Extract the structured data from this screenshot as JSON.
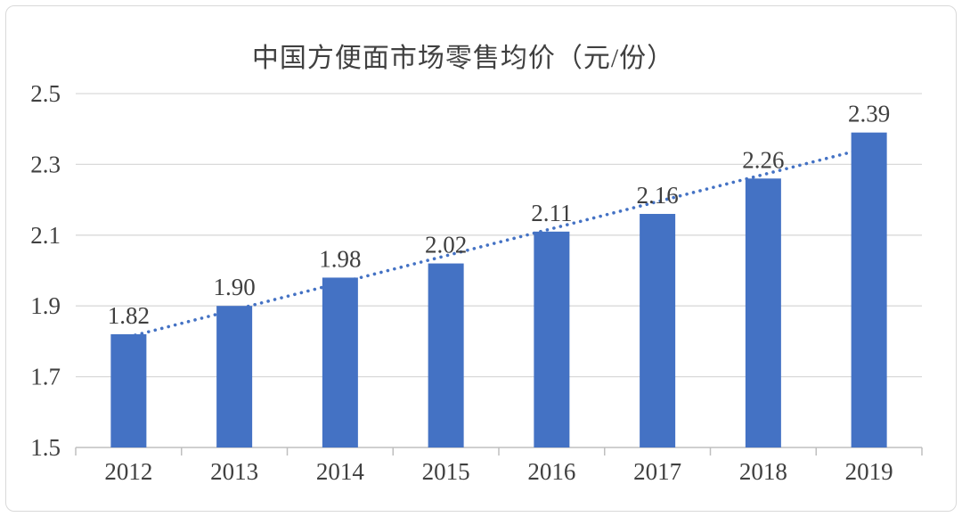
{
  "chart_data": {
    "type": "bar",
    "title": "中国方便面市场零售均价（元/份）",
    "categories": [
      "2012",
      "2013",
      "2014",
      "2015",
      "2016",
      "2017",
      "2018",
      "2019"
    ],
    "values": [
      1.82,
      1.9,
      1.98,
      2.02,
      2.11,
      2.16,
      2.26,
      2.39
    ],
    "value_labels": [
      "1.82",
      "1.90",
      "1.98",
      "2.02",
      "2.11",
      "2.16",
      "2.26",
      "2.39"
    ],
    "xlabel": "",
    "ylabel": "",
    "ylim": [
      1.5,
      2.5
    ],
    "ytick_labels": [
      "1.5",
      "1.7",
      "1.9",
      "2.1",
      "2.3",
      "2.5"
    ],
    "yticks": [
      1.5,
      1.7,
      1.9,
      2.1,
      2.3,
      2.5
    ],
    "grid": true,
    "legend": "none",
    "trendline": {
      "type": "linear",
      "style": "dotted"
    },
    "colors": {
      "bar": "#4472C4",
      "trendline": "#4472C4",
      "gridline": "#D9D9D9",
      "axis": "#BFBFBF",
      "data_label": "#3F3F3F",
      "tick_label": "#404040",
      "title": "#404040",
      "frame_border": "#D9D9D9",
      "background": "#FFFFFF"
    }
  }
}
